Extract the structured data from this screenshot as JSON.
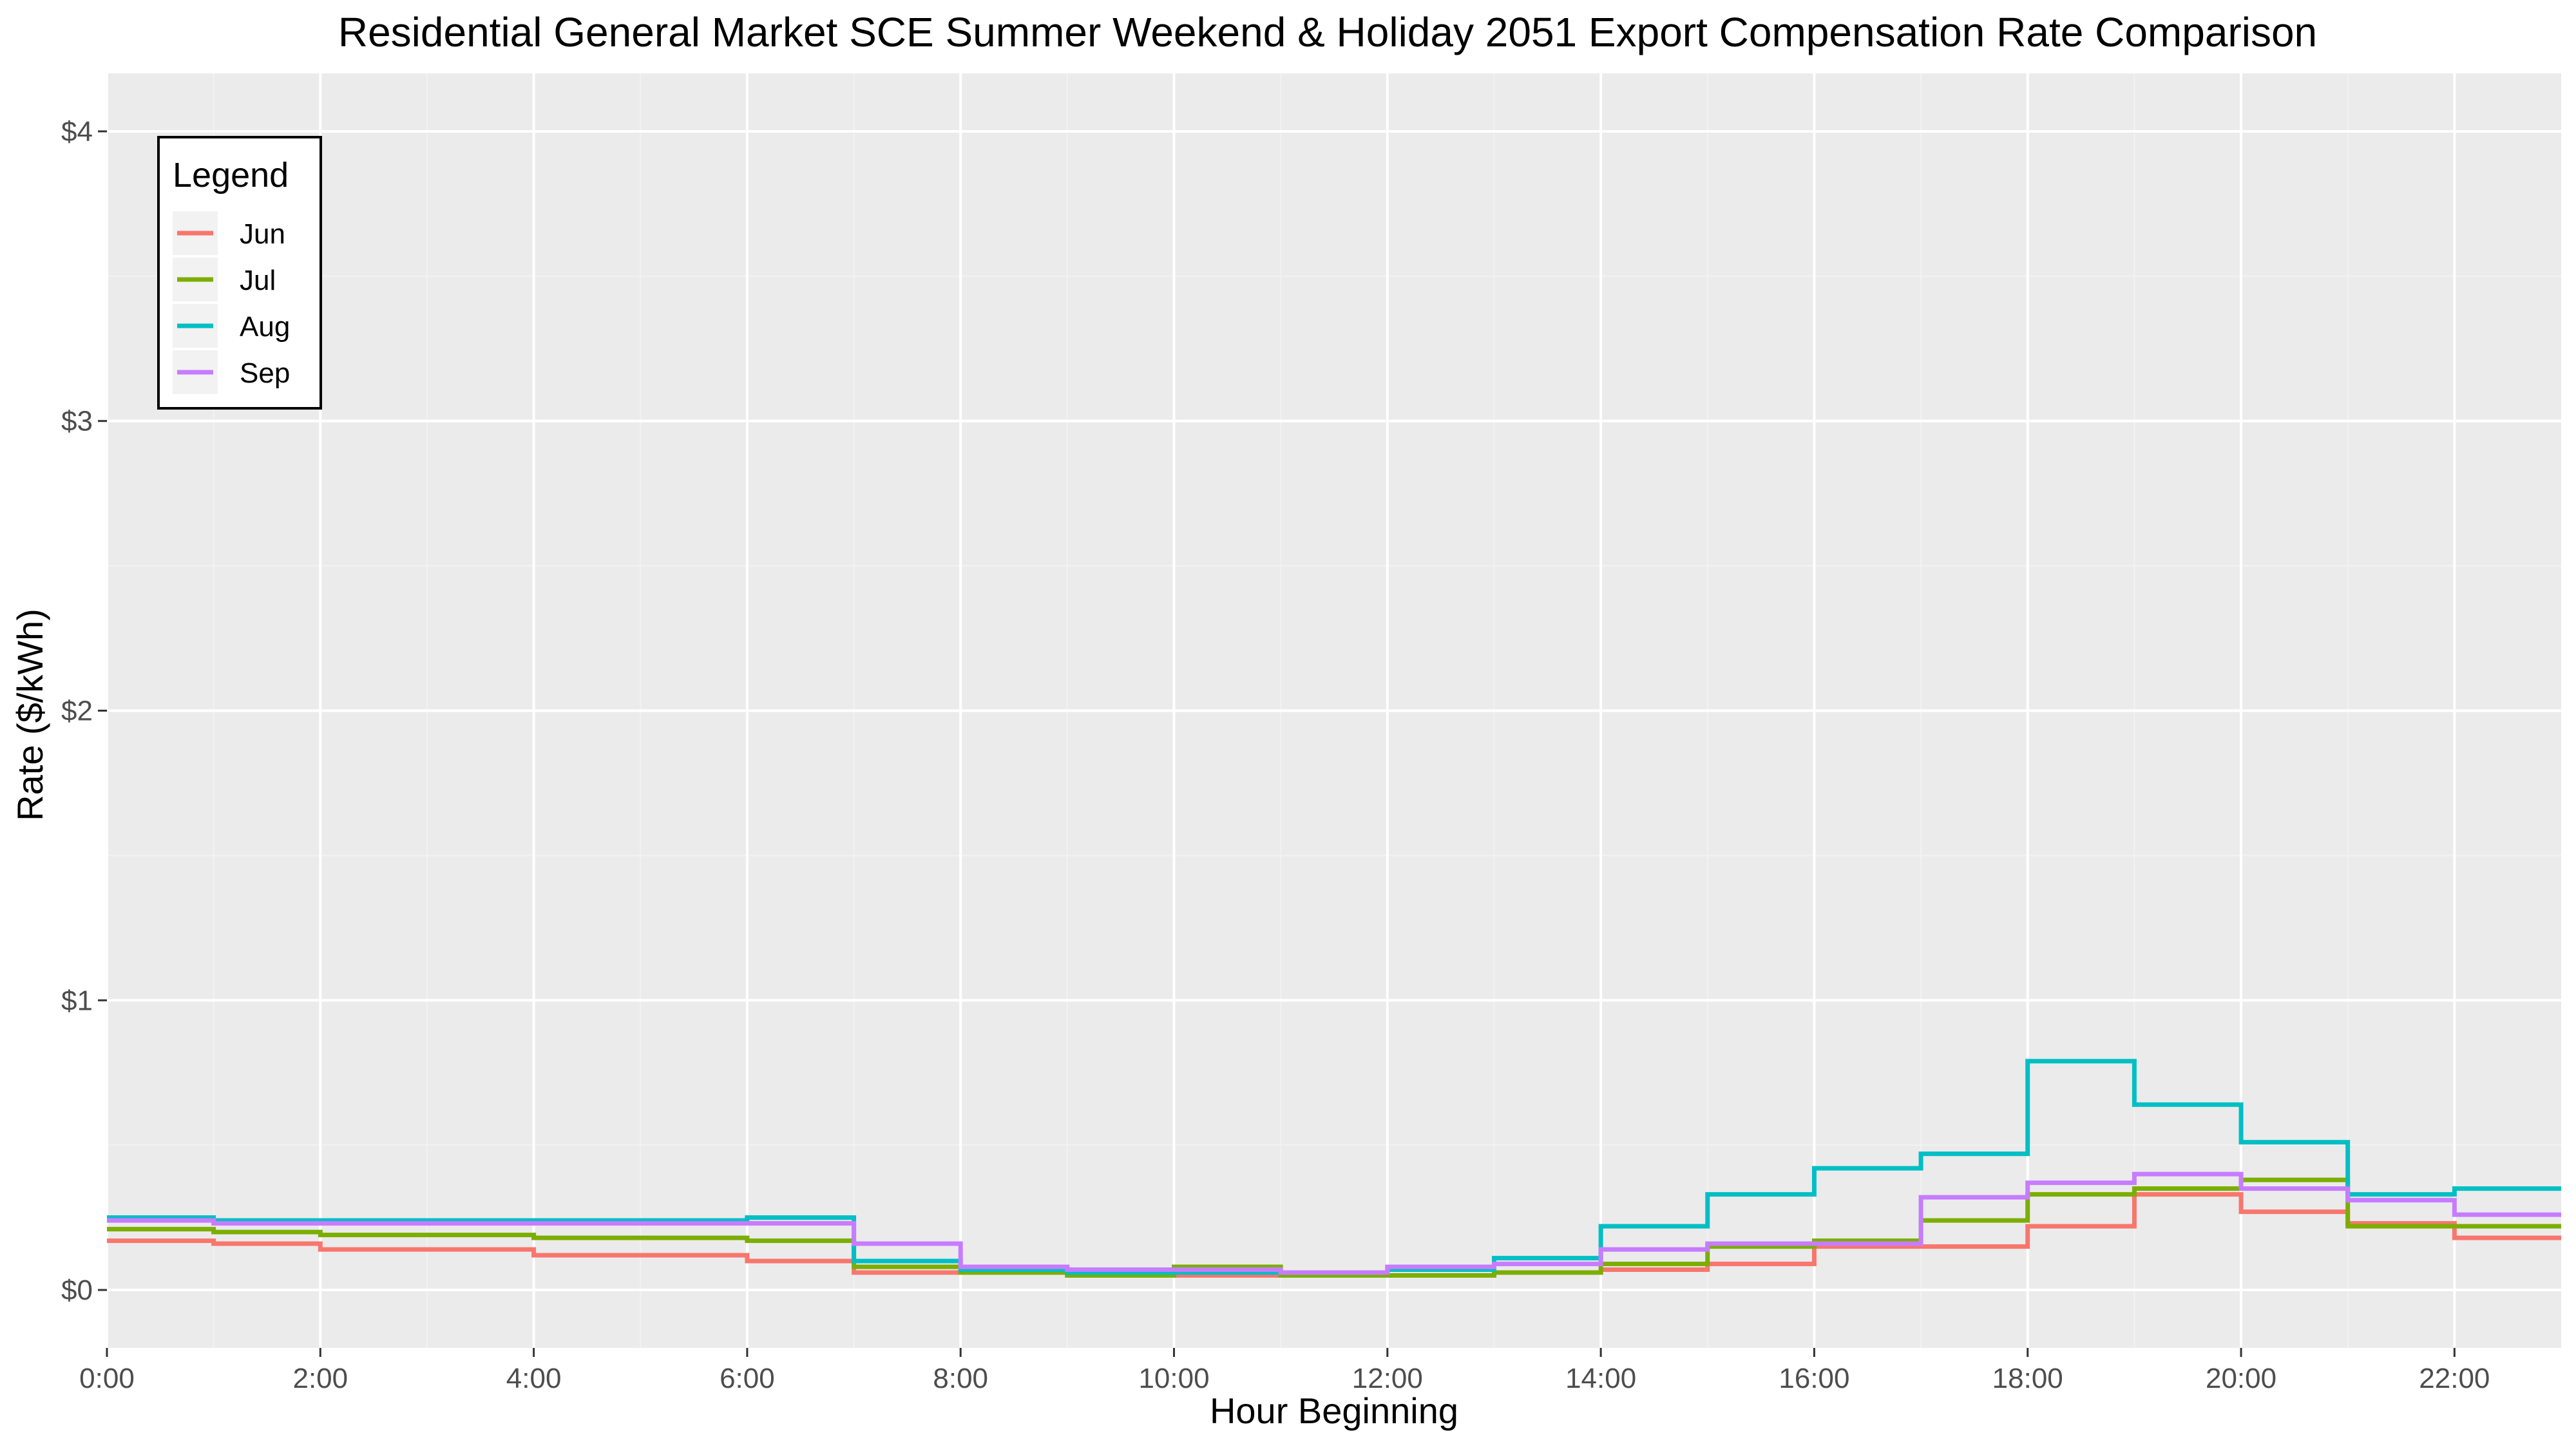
{
  "chart_data": {
    "type": "line",
    "step": true,
    "title": "Residential General Market SCE Summer Weekend & Holiday 2051 Export Compensation Rate Comparison",
    "xlabel": "Hour Beginning",
    "ylabel": "Rate ($/kWh)",
    "xlim": [
      0,
      23
    ],
    "ylim": [
      -0.2,
      4.2
    ],
    "x_ticks": [
      0,
      2,
      4,
      6,
      8,
      10,
      12,
      14,
      16,
      18,
      20,
      22
    ],
    "x_tick_labels": [
      "0:00",
      "2:00",
      "4:00",
      "6:00",
      "8:00",
      "10:00",
      "12:00",
      "14:00",
      "16:00",
      "18:00",
      "20:00",
      "22:00"
    ],
    "y_ticks": [
      0,
      1,
      2,
      3,
      4
    ],
    "y_tick_labels": [
      "$0",
      "$1",
      "$2",
      "$3",
      "$4"
    ],
    "grid": true,
    "legend": {
      "title": "Legend",
      "position": "top-left"
    },
    "x": [
      0,
      1,
      2,
      3,
      4,
      5,
      6,
      7,
      8,
      9,
      10,
      11,
      12,
      13,
      14,
      15,
      16,
      17,
      18,
      19,
      20,
      21,
      22,
      23
    ],
    "series": [
      {
        "name": "Jun",
        "color": "#F8766D",
        "values": [
          0.17,
          0.16,
          0.14,
          0.14,
          0.12,
          0.12,
          0.1,
          0.06,
          0.06,
          0.05,
          0.05,
          0.05,
          0.05,
          0.06,
          0.07,
          0.09,
          0.15,
          0.15,
          0.22,
          0.33,
          0.27,
          0.23,
          0.18,
          0.18
        ]
      },
      {
        "name": "Jul",
        "color": "#7CAE00",
        "values": [
          0.21,
          0.2,
          0.19,
          0.19,
          0.18,
          0.18,
          0.17,
          0.08,
          0.06,
          0.05,
          0.08,
          0.05,
          0.05,
          0.06,
          0.09,
          0.15,
          0.17,
          0.24,
          0.33,
          0.35,
          0.38,
          0.22,
          0.22,
          0.22
        ]
      },
      {
        "name": "Aug",
        "color": "#00BFC4",
        "values": [
          0.25,
          0.24,
          0.24,
          0.24,
          0.24,
          0.24,
          0.25,
          0.1,
          0.07,
          0.06,
          0.06,
          0.06,
          0.07,
          0.11,
          0.22,
          0.33,
          0.42,
          0.47,
          0.79,
          0.64,
          0.51,
          0.33,
          0.35,
          0.35
        ]
      },
      {
        "name": "Sep",
        "color": "#C77CFF",
        "values": [
          0.24,
          0.23,
          0.23,
          0.23,
          0.23,
          0.23,
          0.23,
          0.16,
          0.08,
          0.07,
          0.07,
          0.06,
          0.08,
          0.09,
          0.14,
          0.16,
          0.16,
          0.32,
          0.37,
          0.4,
          0.35,
          0.31,
          0.26,
          0.26
        ]
      }
    ]
  }
}
